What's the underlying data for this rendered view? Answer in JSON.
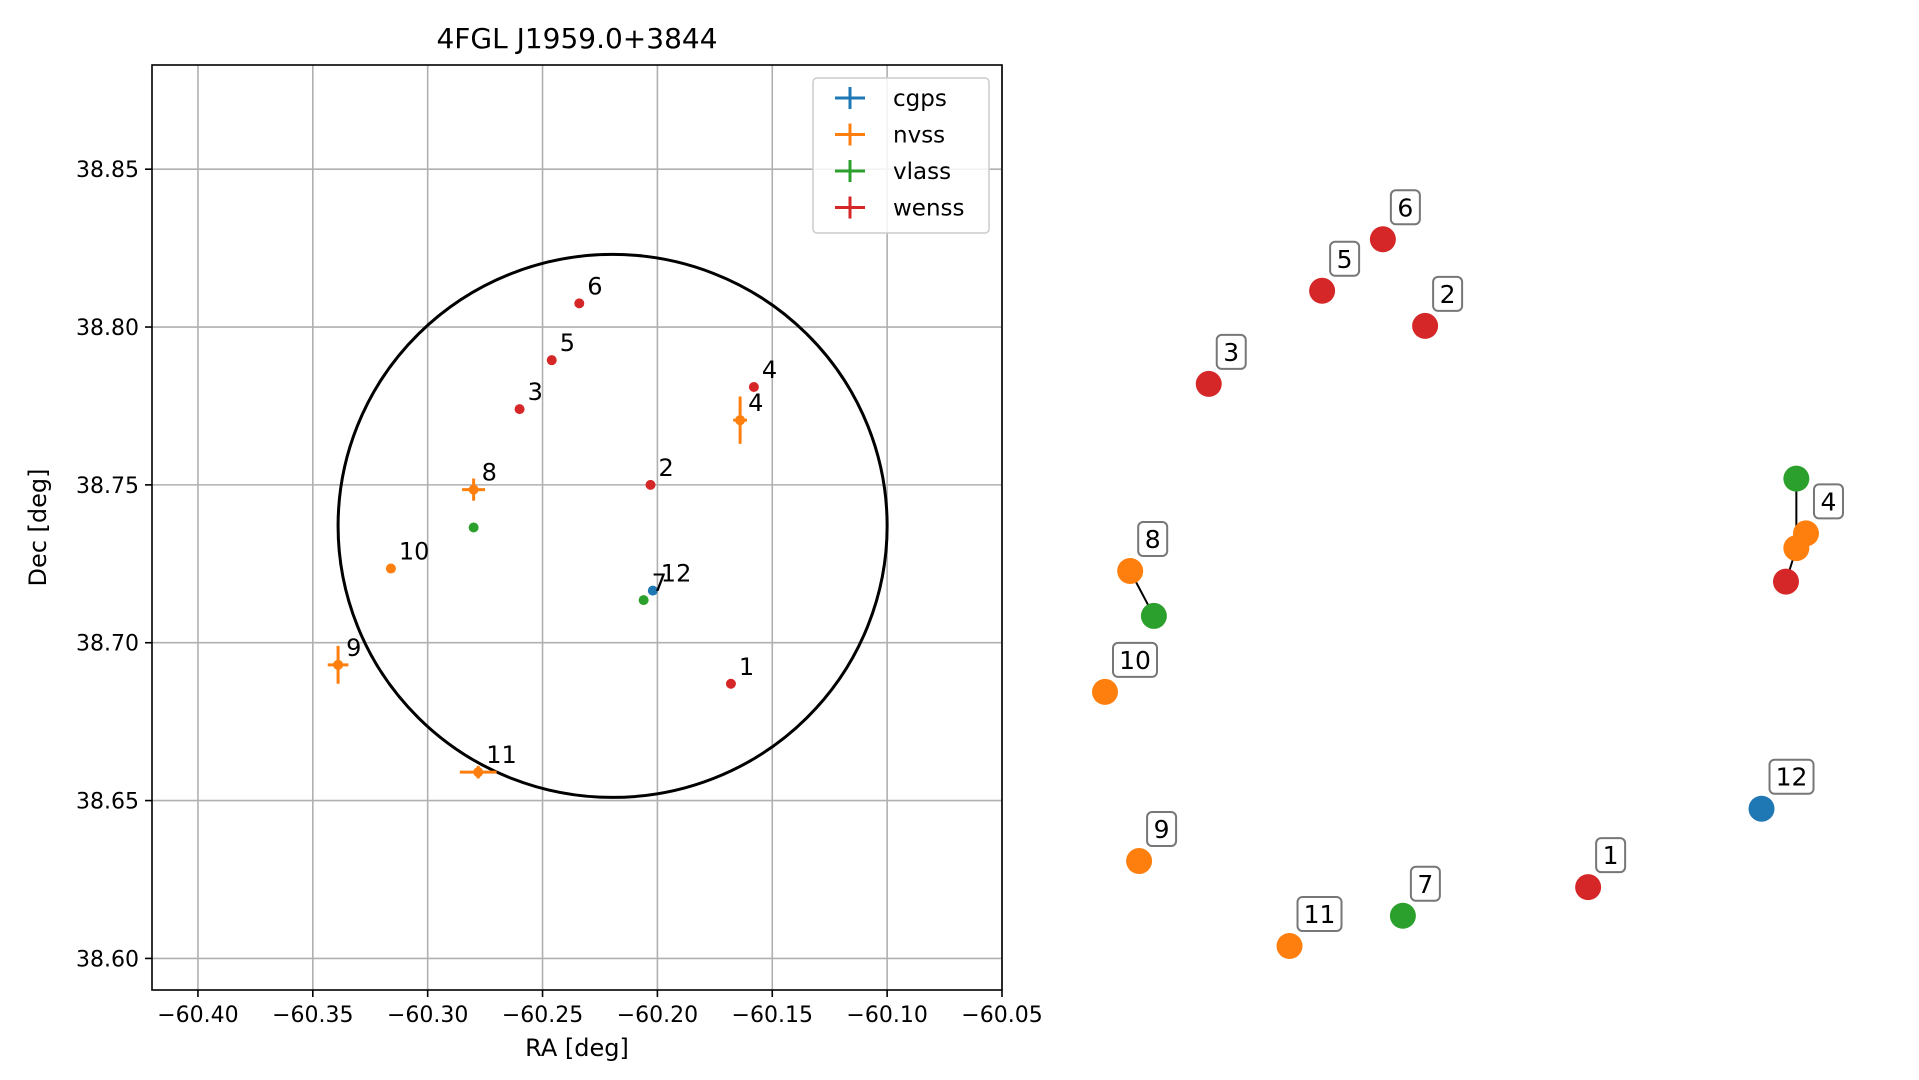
{
  "chart_data": [
    {
      "type": "scatter",
      "title": "4FGL J1959.0+3844",
      "xlabel": "RA [deg]",
      "ylabel": "Dec [deg]",
      "xlim": [
        -60.42,
        -60.05
      ],
      "ylim": [
        38.59,
        38.883
      ],
      "xticks": [
        -60.4,
        -60.35,
        -60.3,
        -60.25,
        -60.2,
        -60.15,
        -60.1,
        -60.05
      ],
      "xtick_labels": [
        "−60.40",
        "−60.35",
        "−60.30",
        "−60.25",
        "−60.20",
        "−60.15",
        "−60.10",
        "−60.05"
      ],
      "yticks": [
        38.6,
        38.65,
        38.7,
        38.75,
        38.8,
        38.85
      ],
      "ytick_labels": [
        "38.60",
        "38.65",
        "38.70",
        "38.75",
        "38.80",
        "38.85"
      ],
      "grid": true,
      "legend_placement": "top-right",
      "ellipse": {
        "center_x": -60.2195,
        "center_y": 38.737,
        "radius_x": 0.1195,
        "radius_y": 0.086
      },
      "series": [
        {
          "name": "cgps",
          "color": "#1f77b4",
          "points": [
            {
              "label": "12",
              "x": -60.202,
              "y": 38.7165,
              "xerr": 0,
              "yerr": 0
            }
          ]
        },
        {
          "name": "nvss",
          "color": "#ff7f0e",
          "points": [
            {
              "label": "4",
              "x": -60.164,
              "y": 38.7705,
              "xerr": 0.003,
              "yerr": 0.0075
            },
            {
              "label": "8",
              "x": -60.28,
              "y": 38.7485,
              "xerr": 0.005,
              "yerr": 0.0035
            },
            {
              "label": "10",
              "x": -60.316,
              "y": 38.7235,
              "xerr": 0,
              "yerr": 0
            },
            {
              "label": "9",
              "x": -60.339,
              "y": 38.693,
              "xerr": 0.0045,
              "yerr": 0.006
            },
            {
              "label": "11",
              "x": -60.278,
              "y": 38.659,
              "xerr": 0.008,
              "yerr": 0.002
            }
          ]
        },
        {
          "name": "vlass",
          "color": "#2ca02c",
          "points": [
            {
              "label": "",
              "x": -60.28,
              "y": 38.7365,
              "xerr": 0,
              "yerr": 0
            },
            {
              "label": "7",
              "x": -60.206,
              "y": 38.7135,
              "xerr": 0,
              "yerr": 0
            }
          ]
        },
        {
          "name": "wenss",
          "color": "#d62728",
          "points": [
            {
              "label": "6",
              "x": -60.234,
              "y": 38.8075,
              "xerr": 0,
              "yerr": 0
            },
            {
              "label": "5",
              "x": -60.246,
              "y": 38.7895,
              "xerr": 0,
              "yerr": 0
            },
            {
              "label": "3",
              "x": -60.26,
              "y": 38.774,
              "xerr": 0,
              "yerr": 0
            },
            {
              "label": "4",
              "x": -60.158,
              "y": 38.781,
              "xerr": 0,
              "yerr": 0
            },
            {
              "label": "2",
              "x": -60.203,
              "y": 38.75,
              "xerr": 0,
              "yerr": 0
            },
            {
              "label": "1",
              "x": -60.168,
              "y": 38.687,
              "xerr": 0,
              "yerr": 0
            }
          ]
        }
      ]
    },
    {
      "type": "scatter",
      "title": "",
      "axes": false,
      "x_range": [
        0,
        100
      ],
      "y_range": [
        0,
        100
      ],
      "points": [
        {
          "label": "6",
          "color": "#d62728",
          "x": 37.5,
          "y": 86.5,
          "boxed": true
        },
        {
          "label": "5",
          "color": "#d62728",
          "x": 29.3,
          "y": 80.2,
          "boxed": true
        },
        {
          "label": "2",
          "color": "#d62728",
          "x": 43.2,
          "y": 75.9,
          "boxed": true
        },
        {
          "label": "3",
          "color": "#d62728",
          "x": 14.0,
          "y": 68.8,
          "boxed": true
        },
        {
          "label": "",
          "color": "#2ca02c",
          "x": 93.3,
          "y": 57.2,
          "boxed": false
        },
        {
          "label": "4",
          "color": "#ff7f0e",
          "x": 94.6,
          "y": 50.5,
          "boxed": true
        },
        {
          "label": "",
          "color": "#ff7f0e",
          "x": 93.3,
          "y": 48.7,
          "boxed": false
        },
        {
          "label": "",
          "color": "#d62728",
          "x": 91.9,
          "y": 44.6,
          "boxed": false
        },
        {
          "label": "8",
          "color": "#ff7f0e",
          "x": 3.4,
          "y": 45.9,
          "boxed": true
        },
        {
          "label": "",
          "color": "#2ca02c",
          "x": 6.6,
          "y": 40.4,
          "boxed": false
        },
        {
          "label": "10",
          "color": "#ff7f0e",
          "x": 0.0,
          "y": 31.1,
          "boxed": true
        },
        {
          "label": "12",
          "color": "#1f77b4",
          "x": 88.6,
          "y": 16.8,
          "boxed": true
        },
        {
          "label": "9",
          "color": "#ff7f0e",
          "x": 4.6,
          "y": 10.4,
          "boxed": true
        },
        {
          "label": "1",
          "color": "#d62728",
          "x": 65.2,
          "y": 7.2,
          "boxed": true
        },
        {
          "label": "7",
          "color": "#2ca02c",
          "x": 40.2,
          "y": 3.7,
          "boxed": true
        },
        {
          "label": "11",
          "color": "#ff7f0e",
          "x": 24.9,
          "y": 0.0,
          "boxed": true
        }
      ],
      "connectors": [
        {
          "from": 4,
          "to": 6
        },
        {
          "from": 7,
          "to": 6
        },
        {
          "from": 8,
          "to": 9
        }
      ]
    }
  ]
}
